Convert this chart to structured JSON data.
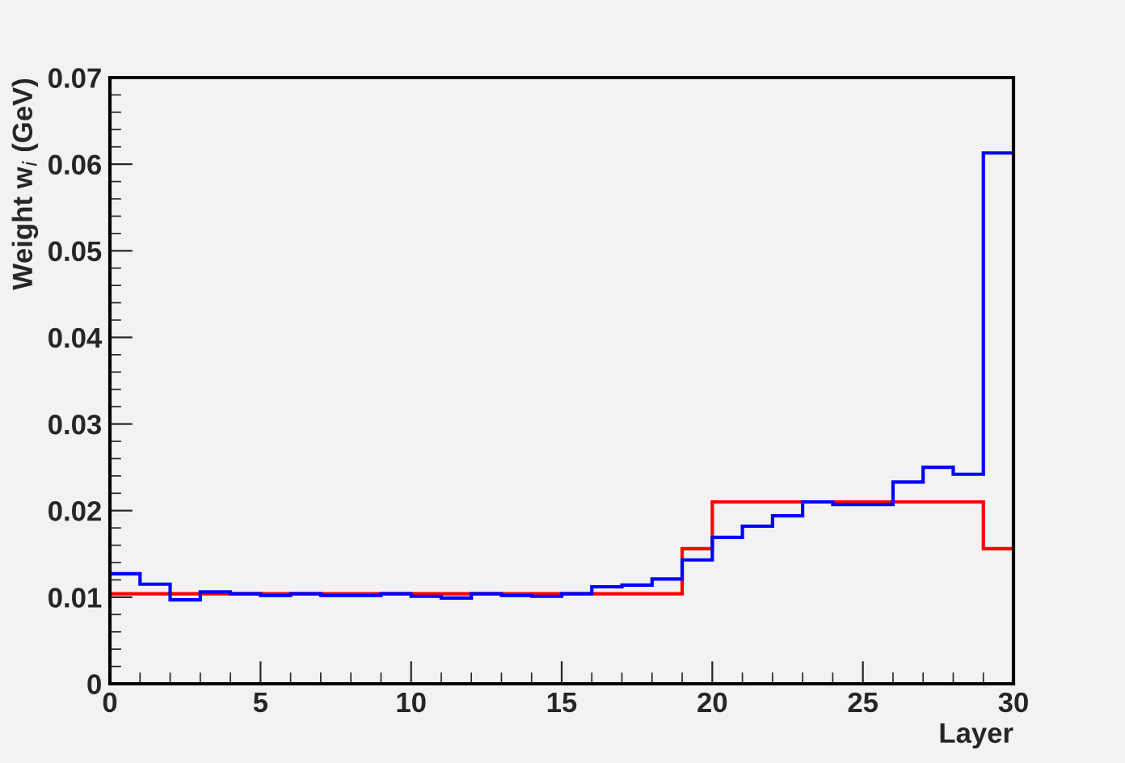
{
  "chart_data": {
    "type": "histogram",
    "xlabel": "Layer",
    "ylabel": "Weight w$_{i}$ (GeV)",
    "bins": [
      0,
      1,
      2,
      3,
      4,
      5,
      6,
      7,
      8,
      9,
      10,
      11,
      12,
      13,
      14,
      15,
      16,
      17,
      18,
      19,
      20,
      21,
      22,
      23,
      24,
      25,
      26,
      27,
      28,
      29,
      30
    ],
    "series": [
      {
        "color": "#ff0000",
        "values": [
          0.0104,
          0.0104,
          0.0104,
          0.0104,
          0.0104,
          0.0104,
          0.0104,
          0.0104,
          0.0104,
          0.0104,
          0.0104,
          0.0104,
          0.0104,
          0.0104,
          0.0104,
          0.0104,
          0.0104,
          0.0104,
          0.0104,
          0.0156,
          0.021,
          0.021,
          0.021,
          0.021,
          0.021,
          0.021,
          0.021,
          0.021,
          0.021,
          0.0156
        ]
      },
      {
        "color": "#0000ff",
        "values": [
          0.0127,
          0.0115,
          0.0097,
          0.0106,
          0.0104,
          0.0102,
          0.0104,
          0.0102,
          0.0102,
          0.0104,
          0.0101,
          0.0099,
          0.0104,
          0.0102,
          0.0101,
          0.0104,
          0.0112,
          0.0114,
          0.0121,
          0.0143,
          0.0169,
          0.0182,
          0.0194,
          0.021,
          0.0207,
          0.0207,
          0.0233,
          0.025,
          0.0242,
          0.0613
        ]
      }
    ],
    "xlim": [
      0,
      30
    ],
    "xticks": [
      0,
      5,
      10,
      15,
      20,
      25,
      30
    ],
    "ylim": [
      0,
      0.07
    ],
    "yticks": [
      0,
      0.01,
      0.02,
      0.03,
      0.04,
      0.05,
      0.06,
      0.07
    ],
    "grid": false,
    "legend": false
  }
}
